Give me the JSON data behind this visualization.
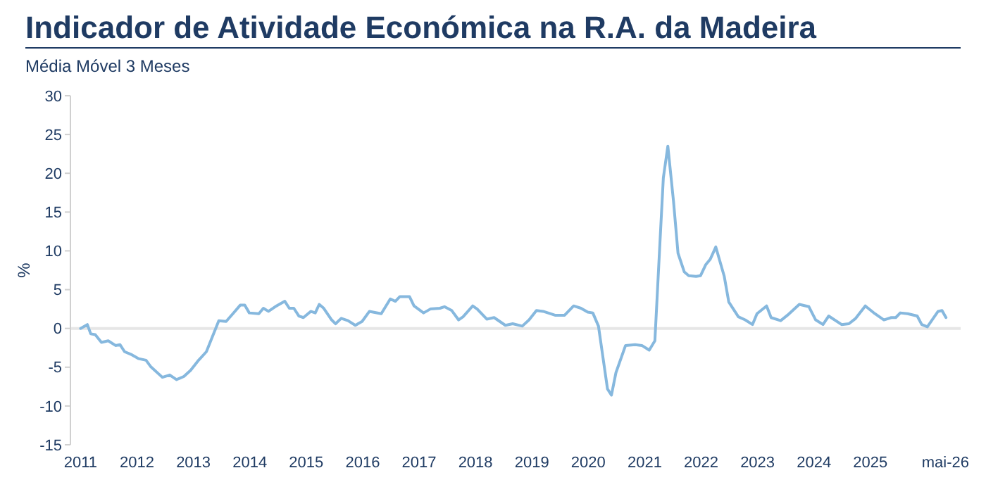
{
  "chart_data": {
    "type": "line",
    "title": "Indicador de Atividade Económica na R.A. da Madeira",
    "subtitle": "Média Móvel 3 Meses",
    "ylabel": "%",
    "x": [
      2011.0,
      2011.12,
      2011.18,
      2011.26,
      2011.37,
      2011.49,
      2011.62,
      2011.7,
      2011.78,
      2011.91,
      2012.03,
      2012.16,
      2012.24,
      2012.45,
      2012.58,
      2012.7,
      2012.83,
      2012.95,
      2013.08,
      2013.23,
      2013.45,
      2013.58,
      2013.7,
      2013.83,
      2013.91,
      2013.99,
      2014.16,
      2014.24,
      2014.33,
      2014.45,
      2014.62,
      2014.7,
      2014.78,
      2014.87,
      2014.95,
      2015.08,
      2015.16,
      2015.23,
      2015.31,
      2015.45,
      2015.52,
      2015.62,
      2015.74,
      2015.87,
      2015.99,
      2016.12,
      2016.33,
      2016.49,
      2016.58,
      2016.66,
      2016.83,
      2016.91,
      2017.08,
      2017.2,
      2017.37,
      2017.45,
      2017.58,
      2017.7,
      2017.78,
      2017.95,
      2018.03,
      2018.2,
      2018.33,
      2018.53,
      2018.66,
      2018.83,
      2018.95,
      2019.08,
      2019.2,
      2019.41,
      2019.58,
      2019.74,
      2019.87,
      2019.99,
      2020.08,
      2020.18,
      2020.34,
      2020.41,
      2020.49,
      2020.66,
      2020.83,
      2020.95,
      2021.08,
      2021.18,
      2021.26,
      2021.33,
      2021.41,
      2021.51,
      2021.59,
      2021.7,
      2021.78,
      2021.91,
      2021.99,
      2022.08,
      2022.16,
      2022.26,
      2022.41,
      2022.49,
      2022.66,
      2022.78,
      2022.91,
      2022.99,
      2023.16,
      2023.24,
      2023.41,
      2023.53,
      2023.74,
      2023.91,
      2024.03,
      2024.16,
      2024.26,
      2024.49,
      2024.62,
      2024.74,
      2024.91,
      2025.08,
      2025.24,
      2025.37,
      2025.45,
      2025.53,
      2025.66,
      2025.83,
      2025.91,
      2026.01,
      2026.2,
      2026.27,
      2026.34
    ],
    "series": [
      {
        "color": "#86b8de",
        "values": [
          0,
          0.5,
          -0.7,
          -0.8,
          -1.8,
          -1.6,
          -2.2,
          -2.1,
          -3.0,
          -3.4,
          -3.9,
          -4.1,
          -4.9,
          -6.3,
          -6.0,
          -6.6,
          -6.2,
          -5.4,
          -4.2,
          -3.0,
          1.0,
          0.9,
          1.9,
          3.0,
          3.0,
          2.0,
          1.9,
          2.6,
          2.2,
          2.8,
          3.5,
          2.6,
          2.6,
          1.6,
          1.4,
          2.2,
          2.0,
          3.1,
          2.6,
          1.1,
          0.6,
          1.3,
          1.0,
          0.4,
          0.9,
          2.2,
          1.9,
          3.8,
          3.5,
          4.1,
          4.1,
          2.9,
          2.0,
          2.5,
          2.6,
          2.8,
          2.3,
          1.1,
          1.5,
          2.9,
          2.5,
          1.2,
          1.4,
          0.4,
          0.6,
          0.3,
          1.1,
          2.3,
          2.2,
          1.7,
          1.7,
          2.9,
          2.6,
          2.1,
          2.0,
          0.3,
          -7.8,
          -8.6,
          -5.7,
          -2.2,
          -2.1,
          -2.2,
          -2.8,
          -1.6,
          9.7,
          19.4,
          23.5,
          16.4,
          9.7,
          7.3,
          6.8,
          6.7,
          6.8,
          8.2,
          8.9,
          10.5,
          6.7,
          3.4,
          1.5,
          1.1,
          0.5,
          1.9,
          2.9,
          1.4,
          1.0,
          1.7,
          3.1,
          2.8,
          1.1,
          0.5,
          1.6,
          0.5,
          0.6,
          1.3,
          2.9,
          1.9,
          1.1,
          1.4,
          1.4,
          2.0,
          1.9,
          1.6,
          0.5,
          0.2,
          2.2,
          2.3,
          1.4
        ]
      }
    ],
    "xlim": [
      2010.82,
      2026.6
    ],
    "xticks": [
      {
        "value": 2011,
        "label": "2011"
      },
      {
        "value": 2012,
        "label": "2012"
      },
      {
        "value": 2013,
        "label": "2013"
      },
      {
        "value": 2014,
        "label": "2014"
      },
      {
        "value": 2015,
        "label": "2015"
      },
      {
        "value": 2016,
        "label": "2016"
      },
      {
        "value": 2017,
        "label": "2017"
      },
      {
        "value": 2018,
        "label": "2018"
      },
      {
        "value": 2019,
        "label": "2019"
      },
      {
        "value": 2020,
        "label": "2020"
      },
      {
        "value": 2021,
        "label": "2021"
      },
      {
        "value": 2022,
        "label": "2022"
      },
      {
        "value": 2023,
        "label": "2023"
      },
      {
        "value": 2024,
        "label": "2024"
      },
      {
        "value": 2025,
        "label": "2025"
      },
      {
        "value": 2026.33,
        "label": "mai-26"
      }
    ],
    "ylim": [
      -15,
      30
    ],
    "yticks": [
      -15,
      -10,
      -5,
      0,
      5,
      10,
      15,
      20,
      25,
      30
    ],
    "ref_lines": [
      {
        "axis": "y",
        "value": 0,
        "color": "#e6e6e6"
      }
    ],
    "grid": false
  }
}
